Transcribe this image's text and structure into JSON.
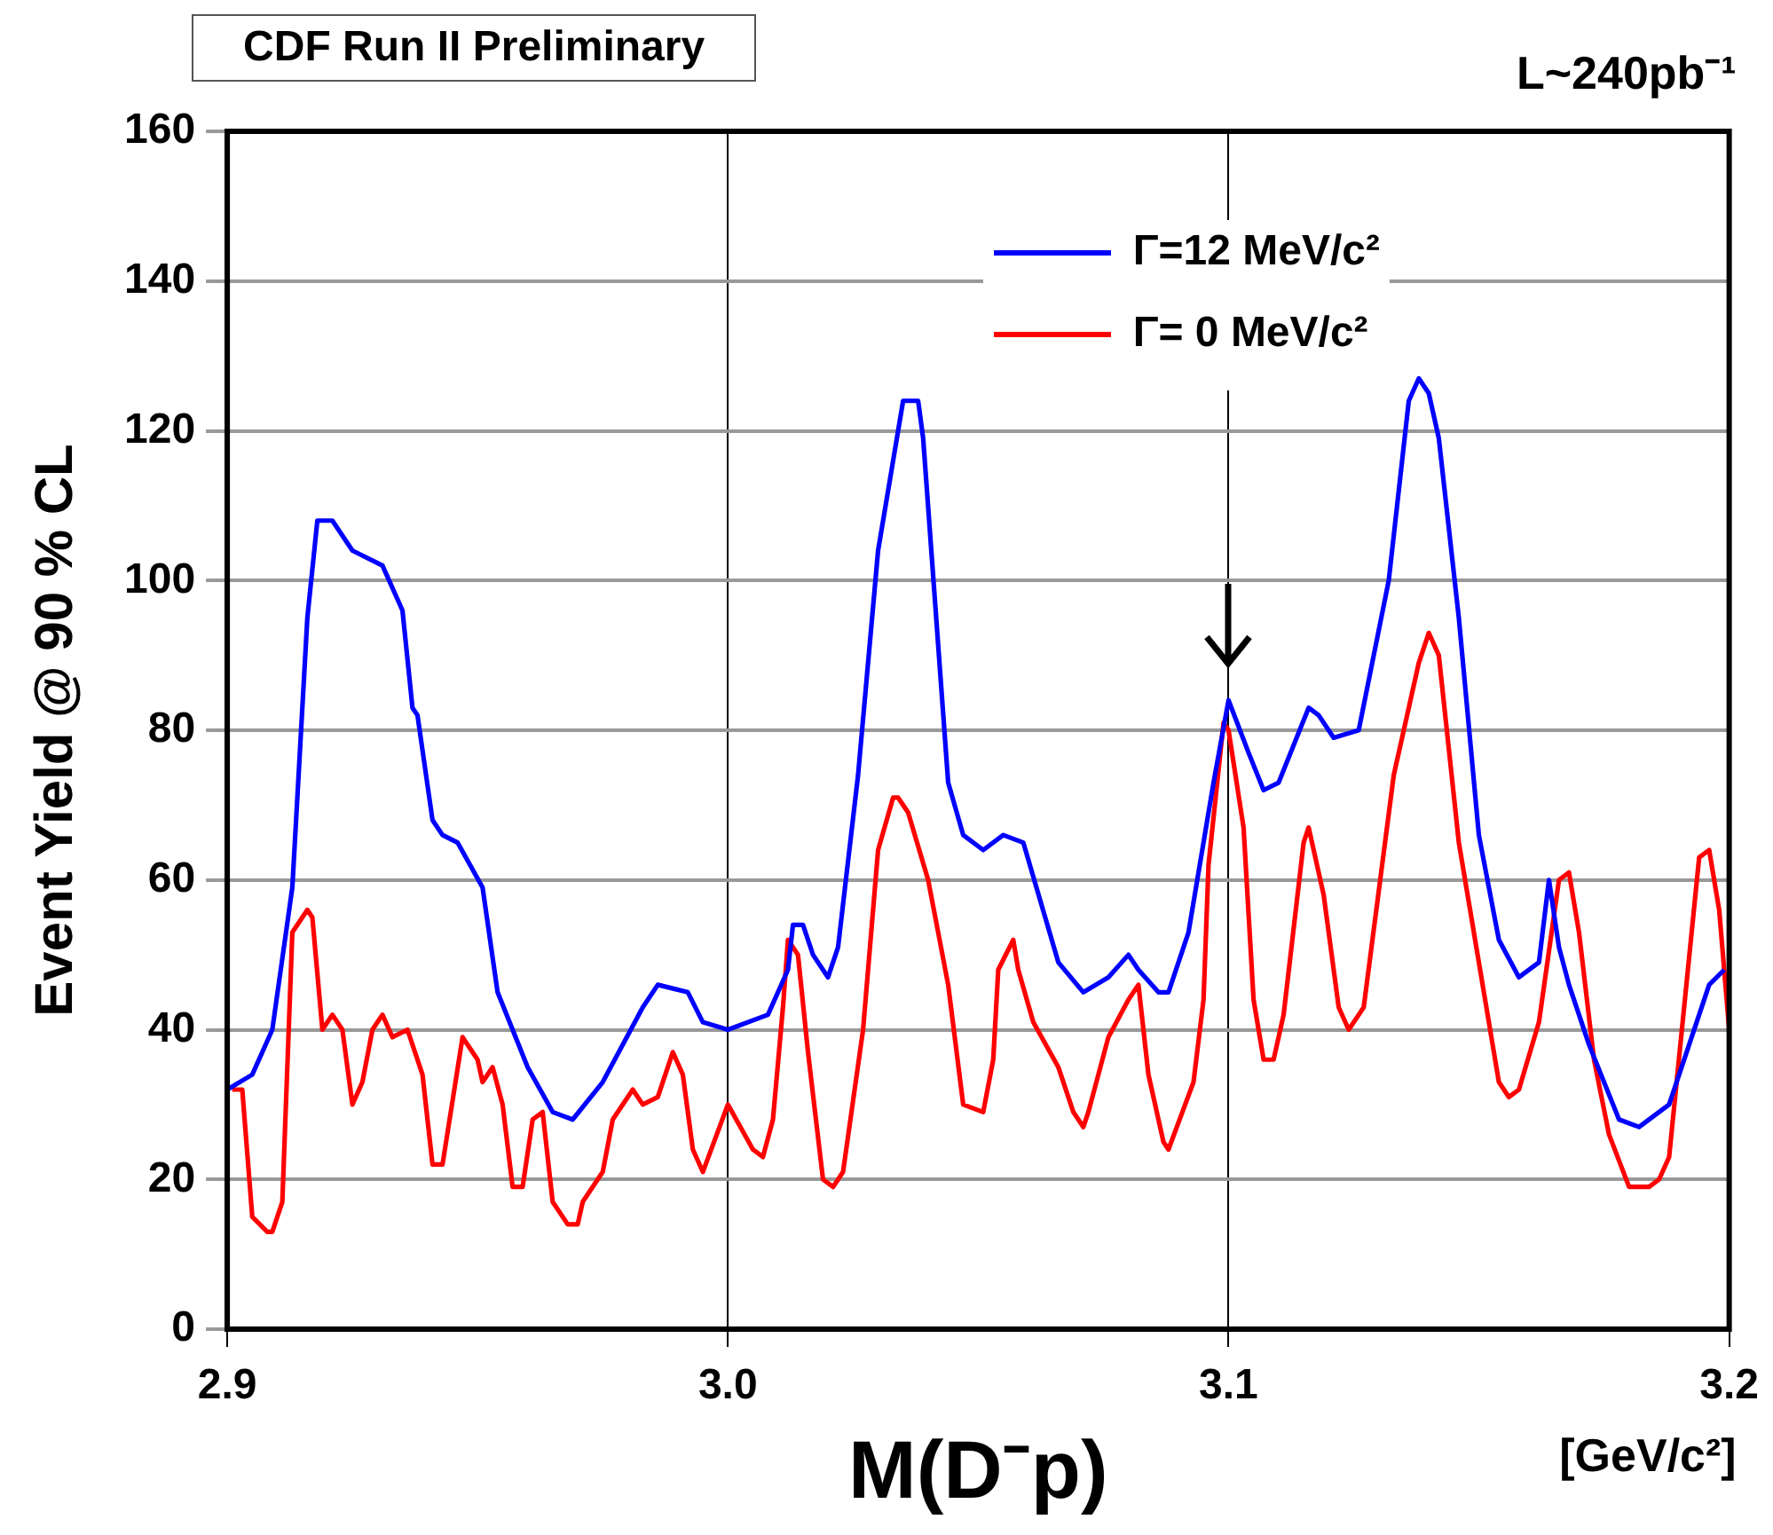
{
  "chart_data": {
    "type": "line",
    "xlabel": "M(D⁻p)",
    "ylabel": "Event Yield @ 90 % CL",
    "annotations": [
      "CDF Run II Preliminary",
      "L~240pb⁻¹",
      "[GeV/c²]"
    ],
    "xlim": [
      2.9,
      3.2
    ],
    "xticks": [
      2.9,
      {
        "value": 3.0,
        "label": "3.0"
      },
      3.1,
      3.2
    ],
    "ylim": [
      0,
      160
    ],
    "yticks": [
      0,
      20,
      40,
      60,
      80,
      100,
      120,
      140,
      160
    ],
    "grid": true,
    "legend": "top right",
    "marker": "none",
    "line_style": "solid",
    "series": [
      {
        "name": "Γ=12 MeV/c²",
        "color": "#0000ff",
        "x": [
          2.9,
          2.905,
          2.909,
          2.913,
          2.916,
          2.918,
          2.921,
          2.925,
          2.931,
          2.935,
          2.937,
          2.938,
          2.941,
          2.943,
          2.946,
          2.951,
          2.954,
          2.96,
          2.965,
          2.969,
          2.975,
          2.983,
          2.986,
          2.992,
          2.995,
          3.0,
          3.008,
          3.012,
          3.013,
          3.015,
          3.017,
          3.02,
          3.022,
          3.026,
          3.03,
          3.035,
          3.038,
          3.039,
          3.044,
          3.047,
          3.051,
          3.055,
          3.059,
          3.066,
          3.071,
          3.076,
          3.08,
          3.082,
          3.086,
          3.088,
          3.092,
          3.097,
          3.1,
          3.104,
          3.107,
          3.11,
          3.116,
          3.118,
          3.121,
          3.126,
          3.132,
          3.136,
          3.138,
          3.14,
          3.142,
          3.146,
          3.15,
          3.154,
          3.158,
          3.162,
          3.164,
          3.166,
          3.168,
          3.172,
          3.178,
          3.182,
          3.188,
          3.192,
          3.196,
          3.199
        ],
        "values": [
          32,
          34,
          40,
          59,
          95,
          108,
          108,
          104,
          102,
          96,
          83,
          82,
          68,
          66,
          65,
          59,
          45,
          35,
          29,
          28,
          33,
          43,
          46,
          45,
          41,
          40,
          42,
          48,
          54,
          54,
          50,
          47,
          51,
          74,
          104,
          124,
          124,
          119,
          73,
          66,
          64,
          66,
          65,
          49,
          45,
          47,
          50,
          48,
          45,
          45,
          53,
          73,
          84,
          77,
          72,
          73,
          83,
          82,
          79,
          80,
          100,
          124,
          127,
          125,
          119,
          95,
          66,
          52,
          47,
          49,
          60,
          51,
          46,
          38,
          28,
          27,
          30,
          38,
          46,
          48
        ]
      },
      {
        "name": "Γ= 0 MeV/c²",
        "color": "#ff0000",
        "x": [
          2.901,
          2.903,
          2.905,
          2.908,
          2.909,
          2.911,
          2.913,
          2.916,
          2.917,
          2.919,
          2.921,
          2.923,
          2.925,
          2.927,
          2.929,
          2.931,
          2.933,
          2.936,
          2.939,
          2.941,
          2.943,
          2.947,
          2.95,
          2.951,
          2.953,
          2.955,
          2.957,
          2.959,
          2.961,
          2.963,
          2.965,
          2.968,
          2.97,
          2.971,
          2.975,
          2.977,
          2.981,
          2.983,
          2.986,
          2.989,
          2.991,
          2.993,
          2.995,
          3.0,
          3.005,
          3.007,
          3.009,
          3.011,
          3.012,
          3.014,
          3.016,
          3.019,
          3.021,
          3.023,
          3.027,
          3.03,
          3.033,
          3.034,
          3.036,
          3.04,
          3.044,
          3.047,
          3.051,
          3.053,
          3.054,
          3.057,
          3.058,
          3.061,
          3.066,
          3.069,
          3.071,
          3.072,
          3.076,
          3.08,
          3.082,
          3.084,
          3.087,
          3.088,
          3.093,
          3.095,
          3.096,
          3.099,
          3.1,
          3.103,
          3.105,
          3.107,
          3.109,
          3.111,
          3.115,
          3.116,
          3.119,
          3.122,
          3.124,
          3.127,
          3.133,
          3.138,
          3.14,
          3.142,
          3.146,
          3.15,
          3.154,
          3.156,
          3.158,
          3.162,
          3.166,
          3.168,
          3.17,
          3.173,
          3.176,
          3.18,
          3.184,
          3.186,
          3.188,
          3.194,
          3.196,
          3.198,
          3.2
        ],
        "values": [
          32,
          32,
          15,
          13,
          13,
          17,
          53,
          56,
          55,
          40,
          42,
          40,
          30,
          33,
          40,
          42,
          39,
          40,
          34,
          22,
          22,
          39,
          36,
          33,
          35,
          30,
          19,
          19,
          28,
          29,
          17,
          14,
          14,
          17,
          21,
          28,
          32,
          30,
          31,
          37,
          34,
          24,
          21,
          30,
          24,
          23,
          28,
          43,
          52,
          50,
          37,
          20,
          19,
          21,
          40,
          64,
          71,
          71,
          69,
          60,
          46,
          30,
          29,
          36,
          48,
          52,
          48,
          41,
          35,
          29,
          27,
          29,
          39,
          44,
          46,
          34,
          25,
          24,
          33,
          44,
          62,
          81,
          80,
          67,
          44,
          36,
          36,
          42,
          65,
          67,
          58,
          43,
          40,
          43,
          74,
          89,
          93,
          90,
          65,
          49,
          33,
          31,
          32,
          41,
          60,
          61,
          53,
          36,
          26,
          19,
          19,
          20,
          23,
          63,
          64,
          56,
          40
        ]
      }
    ]
  }
}
